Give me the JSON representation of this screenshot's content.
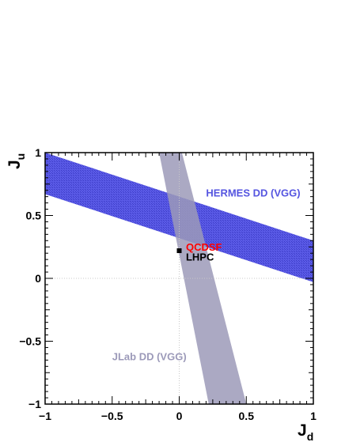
{
  "chart_data": {
    "type": "area",
    "title": "",
    "xlabel": {
      "main": "J",
      "sub": "d"
    },
    "ylabel": {
      "main": "J",
      "sub": "u"
    },
    "xlim": [
      -1,
      1
    ],
    "ylim": [
      -1,
      1
    ],
    "x_ticks": [
      -1,
      -0.5,
      0,
      0.5,
      1
    ],
    "x_tick_labels": [
      "−1",
      "−0.5",
      "0",
      "0.5",
      "1"
    ],
    "y_ticks": [
      -1,
      -0.5,
      0,
      0.5,
      1
    ],
    "y_tick_labels": [
      "−1",
      "−0.5",
      "0",
      "0.5",
      "1"
    ],
    "zero_lines": true,
    "grid": false,
    "bands": [
      {
        "name": "HERMES DD (VGG)",
        "color": "#5555e0",
        "polygon": [
          [
            -1,
            1.0
          ],
          [
            1,
            0.3
          ],
          [
            1,
            -0.03
          ],
          [
            -1,
            0.67
          ]
        ]
      },
      {
        "name": "JLab DD (VGG)",
        "color": "#9c9ab9",
        "polygon": [
          [
            -0.15,
            1.0
          ],
          [
            0.02,
            1.0
          ],
          [
            0.5,
            -1.0
          ],
          [
            0.22,
            -1.0
          ]
        ]
      }
    ],
    "annotations": [
      {
        "text": "HERMES DD (VGG)",
        "x": 0.2,
        "y": 0.65,
        "color": "#5555e0"
      },
      {
        "text": "JLab DD (VGG)",
        "x": -0.5,
        "y": -0.65,
        "color": "#9c9ab9"
      },
      {
        "text": "QCDSF",
        "x": 0.05,
        "y": 0.22,
        "color": "#ff0000"
      },
      {
        "text": "LHPC",
        "x": 0.05,
        "y": 0.14,
        "color": "#000000"
      }
    ],
    "points": [
      {
        "name": "QCDSF",
        "x": 0.0,
        "y": 0.22,
        "color": "#000000"
      }
    ]
  }
}
